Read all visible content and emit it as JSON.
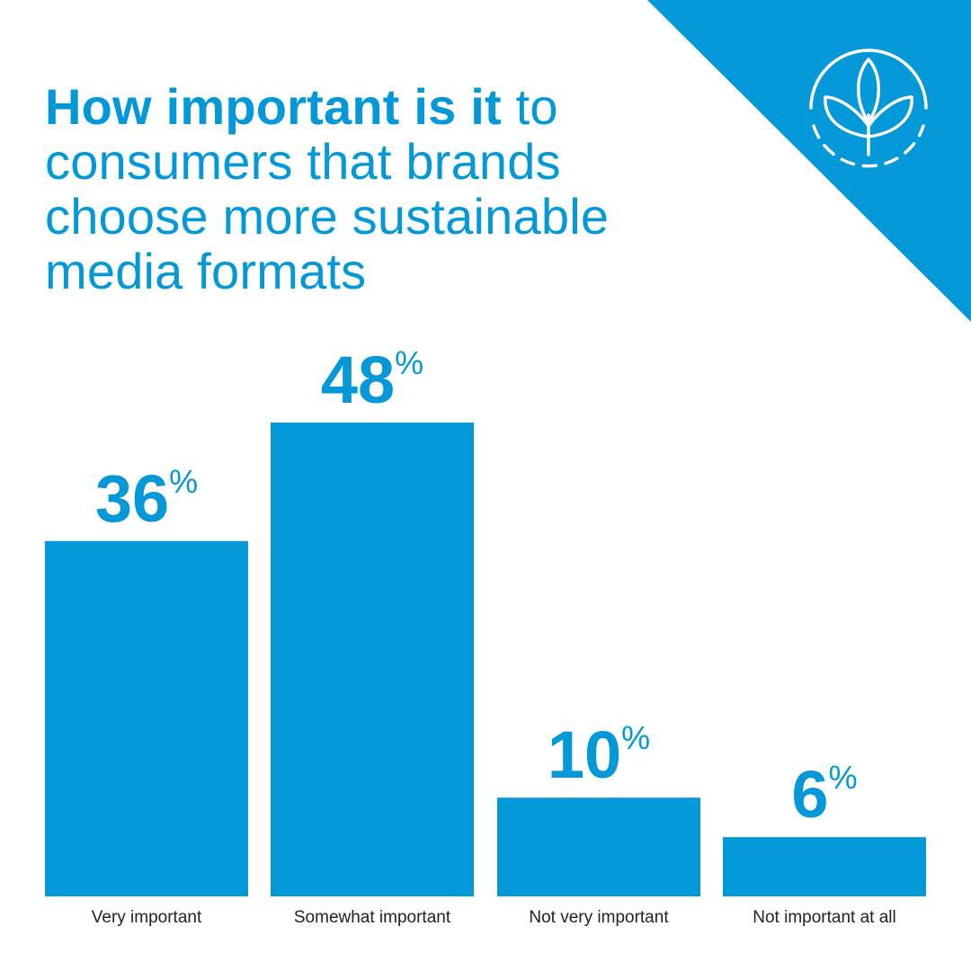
{
  "colors": {
    "accent": "#0399d8",
    "label": "#222222",
    "background": "#ffffff"
  },
  "icon": {
    "name": "leaf-circle-icon"
  },
  "title": {
    "bold": "How important is it",
    "rest": " to consumers that brands choose more sustainable media formats"
  },
  "chart_data": {
    "type": "bar",
    "title": "How important is it to consumers that brands choose more sustainable media formats",
    "categories": [
      "Very important",
      "Somewhat important",
      "Not very important",
      "Not important at all"
    ],
    "values": [
      36,
      48,
      10,
      6
    ],
    "value_suffix": "%",
    "ylim": [
      0,
      48
    ],
    "grid": false,
    "legend": "none"
  }
}
